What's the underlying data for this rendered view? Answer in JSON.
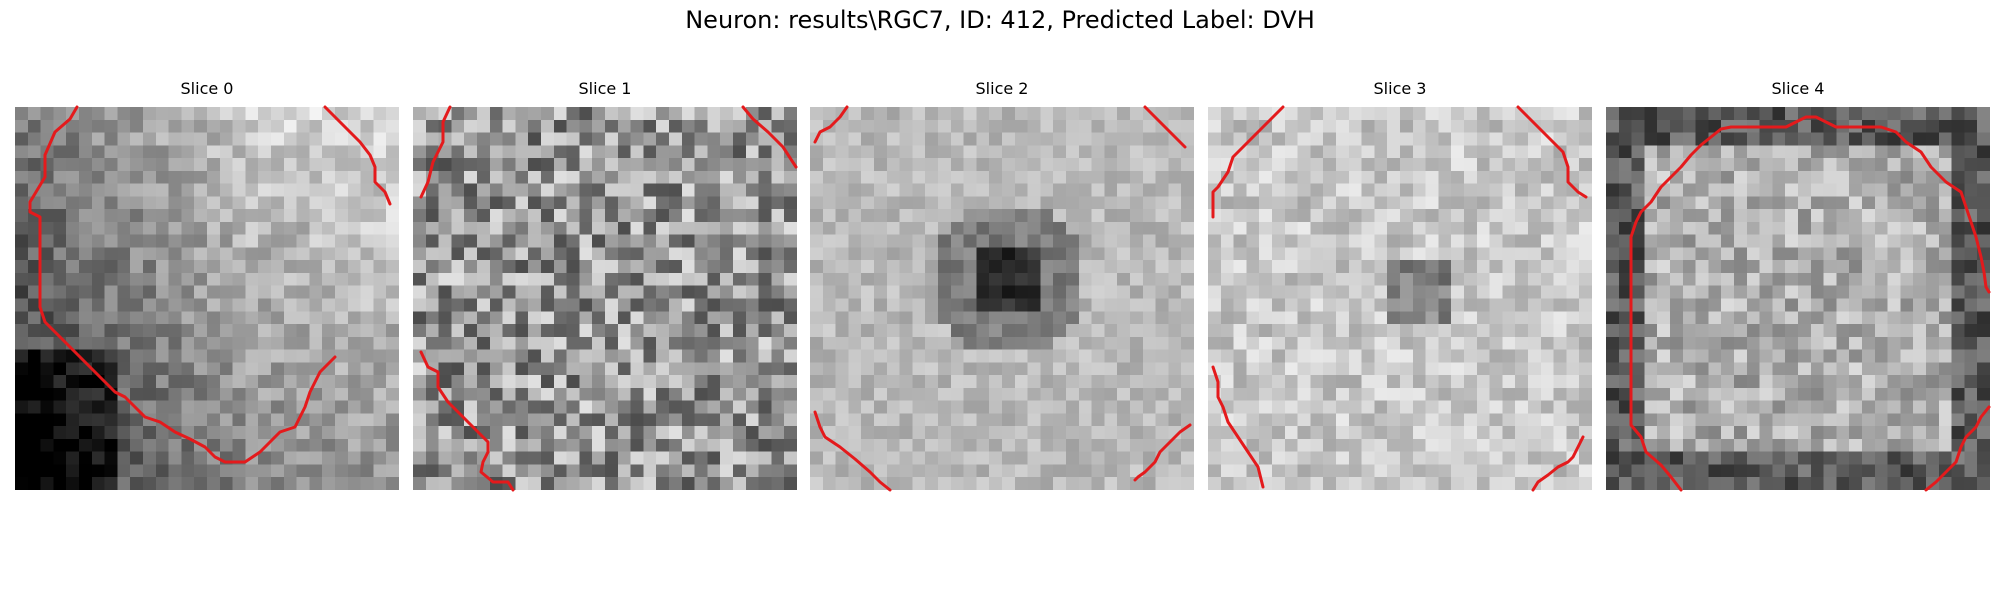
{
  "figure": {
    "title": "Neuron: results\\RGC7, ID: 412, Predicted Label: DVH"
  },
  "panels": [
    {
      "title": "Slice 0"
    },
    {
      "title": "Slice 1"
    },
    {
      "title": "Slice 2"
    },
    {
      "title": "Slice 3"
    },
    {
      "title": "Slice 4"
    }
  ],
  "colors": {
    "contour": "#e41a1c",
    "colormap": "gray"
  }
}
